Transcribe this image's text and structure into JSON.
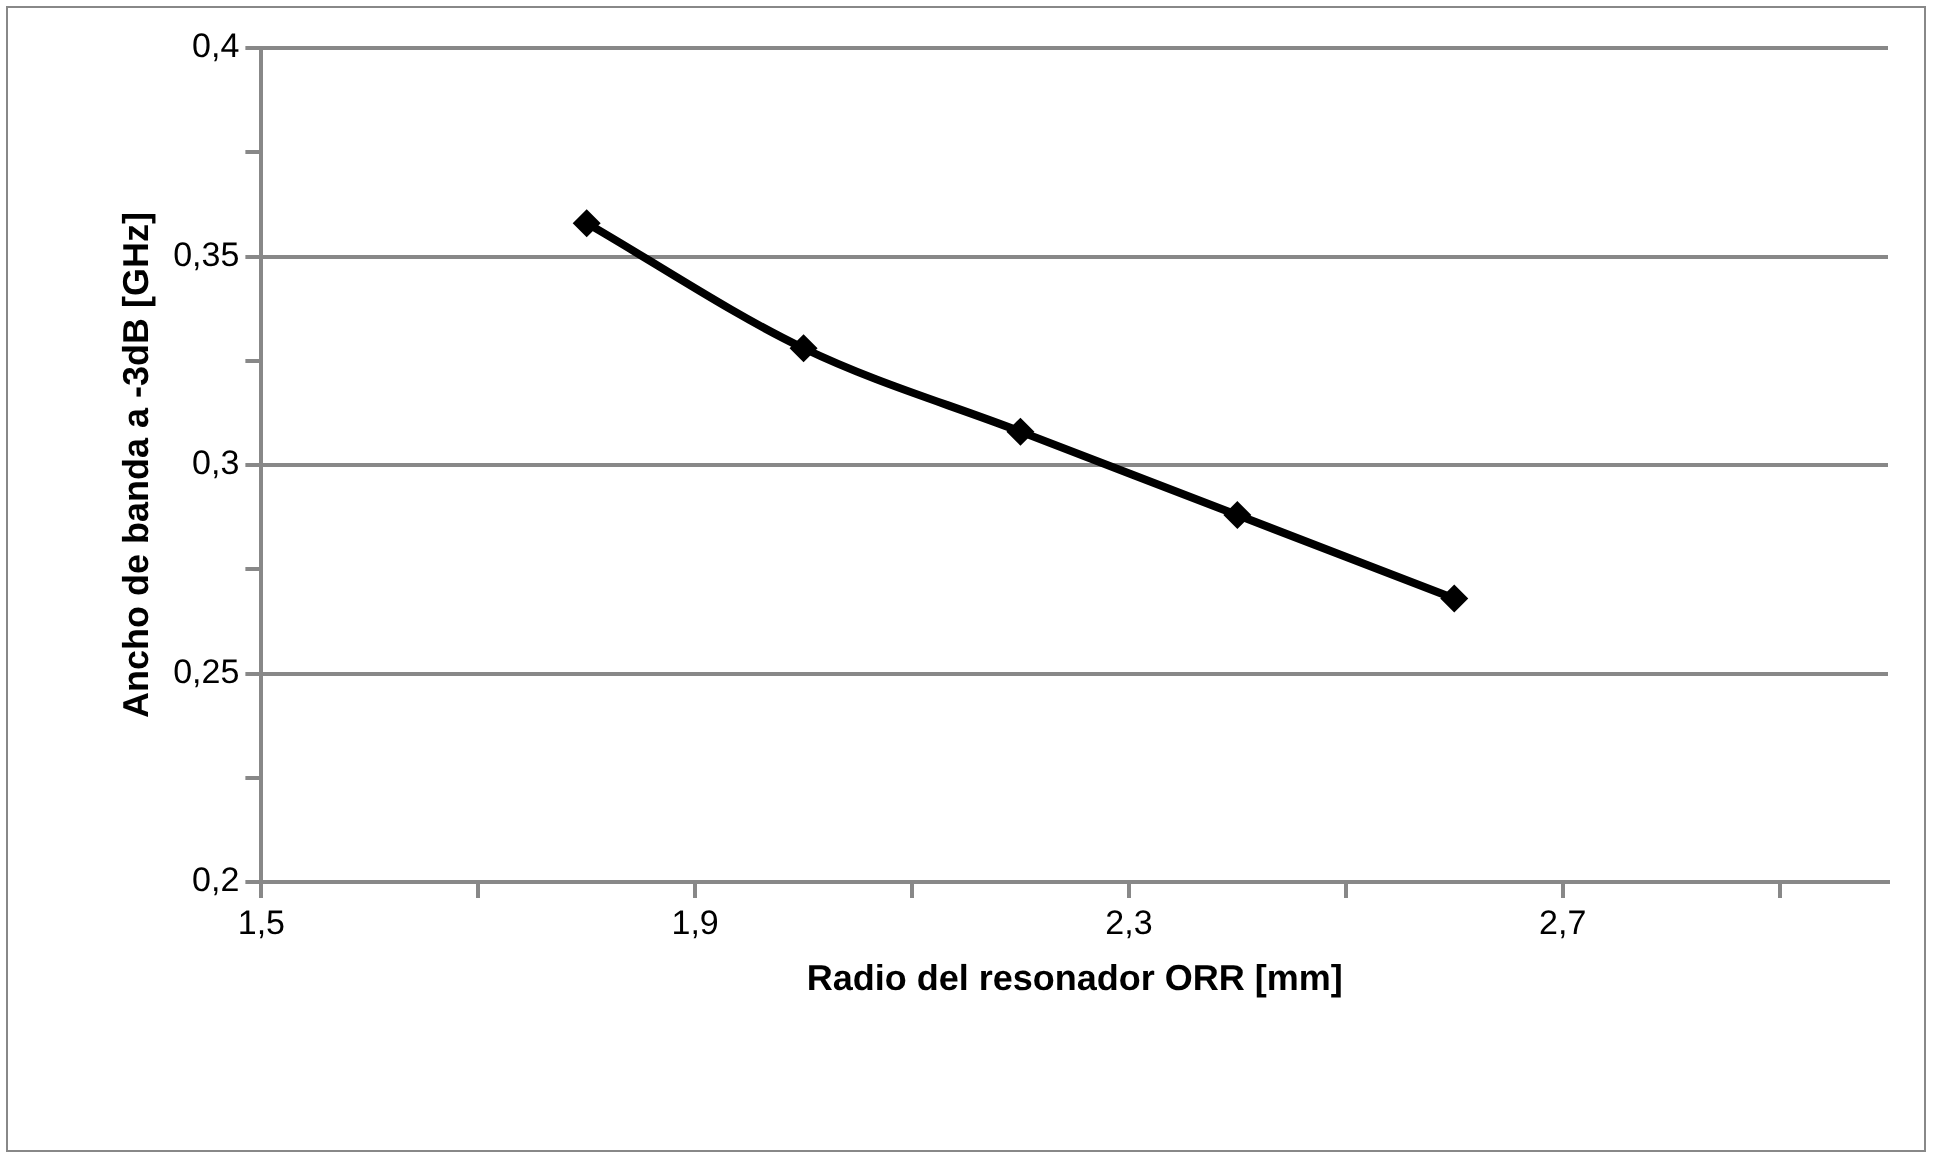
{
  "chart_data": {
    "type": "line",
    "xlabel": "Radio del resonador ORR [mm]",
    "ylabel": "Ancho de banda a -3dB [GHz]",
    "x": [
      1.8,
      2.0,
      2.2,
      2.4,
      2.6
    ],
    "series": [
      {
        "color": "#000000",
        "values": [
          0.358,
          0.328,
          0.308,
          0.288,
          0.268
        ]
      }
    ],
    "xlim": [
      1.5,
      3.0
    ],
    "xticks": [
      {
        "value": 1.5,
        "label": "1,5"
      },
      {
        "value": 1.7,
        "label": null
      },
      {
        "value": 1.9,
        "label": "1,9"
      },
      {
        "value": 2.1,
        "label": null
      },
      {
        "value": 2.3,
        "label": "2,3"
      },
      {
        "value": 2.5,
        "label": null
      },
      {
        "value": 2.7,
        "label": "2,7"
      },
      {
        "value": 2.9,
        "label": null
      }
    ],
    "ylim": [
      0.2,
      0.4
    ],
    "yticks": [
      {
        "value": 0.2,
        "label": "0,2"
      },
      {
        "value": 0.225,
        "label": null
      },
      {
        "value": 0.25,
        "label": "0,25"
      },
      {
        "value": 0.275,
        "label": null
      },
      {
        "value": 0.3,
        "label": "0,3"
      },
      {
        "value": 0.325,
        "label": null
      },
      {
        "value": 0.35,
        "label": "0,35"
      },
      {
        "value": 0.375,
        "label": null
      },
      {
        "value": 0.4,
        "label": "0,4"
      }
    ],
    "grid": "y",
    "legend": false,
    "marker": "diamond",
    "line_style": "solid"
  }
}
